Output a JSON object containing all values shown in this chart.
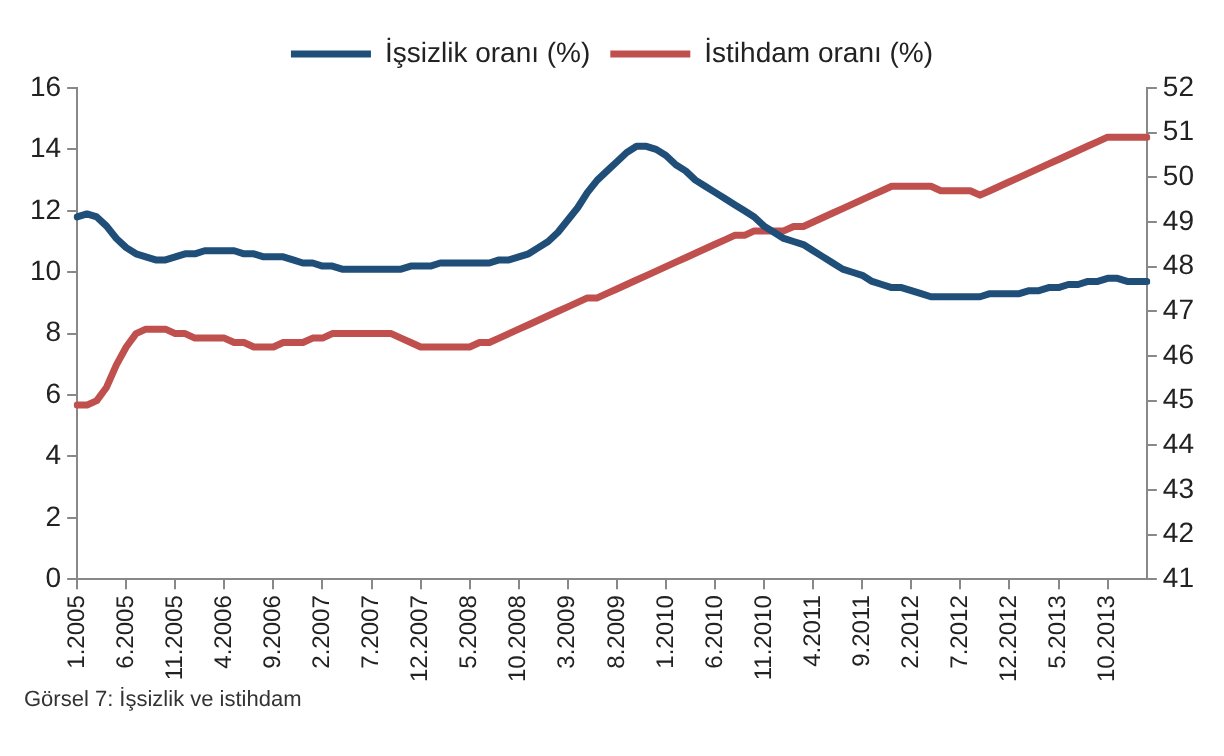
{
  "chart_data": {
    "type": "line",
    "categories": [
      "1.2005",
      null,
      null,
      null,
      null,
      "6.2005",
      null,
      null,
      null,
      null,
      "11.2005",
      null,
      null,
      null,
      null,
      "4.2006",
      null,
      null,
      null,
      null,
      "9.2006",
      null,
      null,
      null,
      null,
      "2.2007",
      null,
      null,
      null,
      null,
      "7.2007",
      null,
      null,
      null,
      null,
      "12.2007",
      null,
      null,
      null,
      null,
      "5.2008",
      null,
      null,
      null,
      null,
      "10.2008",
      null,
      null,
      null,
      null,
      "3.2009",
      null,
      null,
      null,
      null,
      "8.2009",
      null,
      null,
      null,
      null,
      "1.2010",
      null,
      null,
      null,
      null,
      "6.2010",
      null,
      null,
      null,
      null,
      "11.2010",
      null,
      null,
      null,
      null,
      "4.2011",
      null,
      null,
      null,
      null,
      "9.2011",
      null,
      null,
      null,
      null,
      "2.2012",
      null,
      null,
      null,
      null,
      "7.2012",
      null,
      null,
      null,
      null,
      "12.2012",
      null,
      null,
      null,
      null,
      "5.2013",
      null,
      null,
      null,
      null,
      "10.2013",
      null,
      null,
      null,
      null
    ],
    "series": [
      {
        "name": "İşsizlik oranı (%)",
        "color": "#1f4e79",
        "values": [
          11.8,
          11.9,
          11.8,
          11.5,
          11.1,
          10.8,
          10.6,
          10.5,
          10.4,
          10.4,
          10.5,
          10.6,
          10.6,
          10.7,
          10.7,
          10.7,
          10.7,
          10.6,
          10.6,
          10.5,
          10.5,
          10.5,
          10.4,
          10.3,
          10.3,
          10.2,
          10.2,
          10.1,
          10.1,
          10.1,
          10.1,
          10.1,
          10.1,
          10.1,
          10.2,
          10.2,
          10.2,
          10.3,
          10.3,
          10.3,
          10.3,
          10.3,
          10.3,
          10.4,
          10.4,
          10.5,
          10.6,
          10.8,
          11.0,
          11.3,
          11.7,
          12.1,
          12.6,
          13.0,
          13.3,
          13.6,
          13.9,
          14.1,
          14.1,
          14.0,
          13.8,
          13.5,
          13.3,
          13.0,
          12.8,
          12.6,
          12.4,
          12.2,
          12.0,
          11.8,
          11.5,
          11.3,
          11.1,
          11.0,
          10.9,
          10.7,
          10.5,
          10.3,
          10.1,
          10.0,
          9.9,
          9.7,
          9.6,
          9.5,
          9.5,
          9.4,
          9.3,
          9.2,
          9.2,
          9.2,
          9.2,
          9.2,
          9.2,
          9.3,
          9.3,
          9.3,
          9.3,
          9.4,
          9.4,
          9.5,
          9.5,
          9.6,
          9.6,
          9.7,
          9.7,
          9.8,
          9.8,
          9.7,
          9.7,
          9.7
        ]
      },
      {
        "name": "İstihdam oranı (%)",
        "color": "#c0504d",
        "axis": "y2",
        "values": [
          44.9,
          44.9,
          45.0,
          45.3,
          45.8,
          46.2,
          46.5,
          46.6,
          46.6,
          46.6,
          46.5,
          46.5,
          46.4,
          46.4,
          46.4,
          46.4,
          46.3,
          46.3,
          46.2,
          46.2,
          46.2,
          46.3,
          46.3,
          46.3,
          46.4,
          46.4,
          46.5,
          46.5,
          46.5,
          46.5,
          46.5,
          46.5,
          46.5,
          46.4,
          46.3,
          46.2,
          46.2,
          46.2,
          46.2,
          46.2,
          46.2,
          46.3,
          46.3,
          46.4,
          46.5,
          46.6,
          46.7,
          46.8,
          46.9,
          47.0,
          47.1,
          47.2,
          47.3,
          47.3,
          47.4,
          47.5,
          47.6,
          47.7,
          47.8,
          47.9,
          48.0,
          48.1,
          48.2,
          48.3,
          48.4,
          48.5,
          48.6,
          48.7,
          48.7,
          48.8,
          48.8,
          48.8,
          48.8,
          48.9,
          48.9,
          49.0,
          49.1,
          49.2,
          49.3,
          49.4,
          49.5,
          49.6,
          49.7,
          49.8,
          49.8,
          49.8,
          49.8,
          49.8,
          49.7,
          49.7,
          49.7,
          49.7,
          49.6,
          49.7,
          49.8,
          49.9,
          50.0,
          50.1,
          50.2,
          50.3,
          50.4,
          50.5,
          50.6,
          50.7,
          50.8,
          50.9,
          50.9,
          50.9,
          50.9,
          50.9
        ]
      }
    ],
    "ylim": [
      0,
      16
    ],
    "yticks": [
      0,
      2,
      4,
      6,
      8,
      10,
      12,
      14,
      16
    ],
    "y2lim": [
      41,
      52
    ],
    "y2ticks": [
      41,
      42,
      43,
      44,
      45,
      46,
      47,
      48,
      49,
      50,
      51,
      52
    ],
    "legend": "top",
    "grid": false,
    "marker": "none",
    "line_style": "solid",
    "annotations": [
      "Görsel 7: İşsizlik ve istihdam"
    ]
  }
}
